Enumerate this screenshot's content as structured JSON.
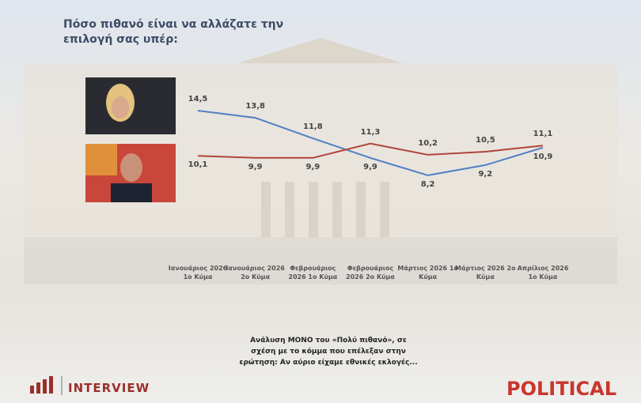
{
  "chart_data": {
    "type": "line",
    "title": "Πόσο πιθανό είναι να αλλάζατε την επιλογή σας υπέρ:",
    "categories": [
      "Ιανουάριος 2026 1ο Κύμα",
      "Ιανουάριος 2026 2ο Κύμα",
      "Φεβρουάριος 2026 1ο Κύμα",
      "Φεβρουάριος 2026 2ο Κύμα",
      "Μάρτιος 2026 1ο Κύμα",
      "Μάρτιος 2026 2ο Κύμα",
      "Απρίλιος 2026 1ο Κύμα"
    ],
    "series": [
      {
        "color": "#4f7fc4",
        "values": [
          14.5,
          13.8,
          11.8,
          9.9,
          8.2,
          9.2,
          10.9
        ],
        "value_labels": [
          "14,5",
          "13,8",
          "11,8",
          "9,9",
          "8,2",
          "9,2",
          "10,9"
        ]
      },
      {
        "color": "#b0453d",
        "values": [
          10.1,
          9.9,
          9.9,
          11.3,
          10.2,
          10.5,
          11.1
        ],
        "value_labels": [
          "10,1",
          "9,9",
          "9,9",
          "11,3",
          "10,2",
          "10,5",
          "11,1"
        ]
      }
    ],
    "ylim": [
      2,
      18
    ],
    "note": "Ανάλυση ΜΟΝΟ του «Πολύ πιθανό», σε σχέση με το κόμμα που επέλεξαν στην ερώτηση: Αν αύριο είχαμε εθνικές εκλογές...",
    "logo_left": "INTERVIEW",
    "logo_right": "POLITICAL"
  }
}
